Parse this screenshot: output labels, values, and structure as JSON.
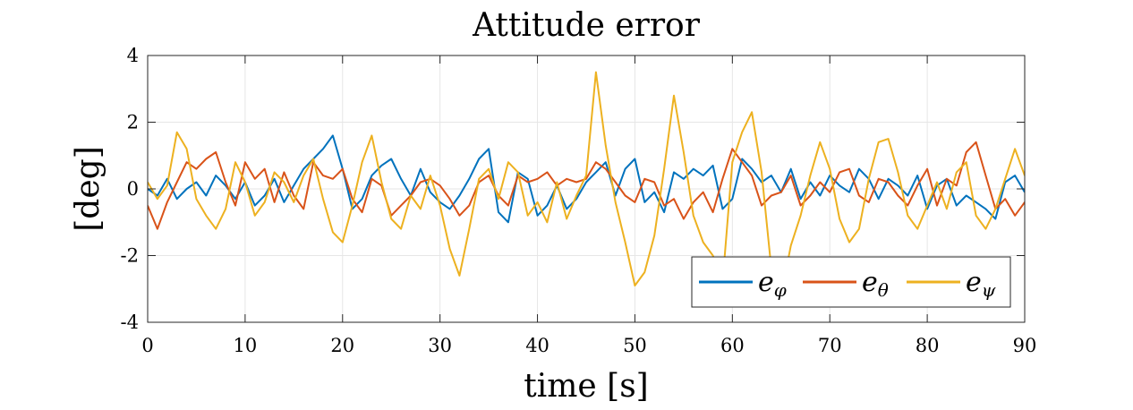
{
  "chart_data": {
    "type": "line",
    "title": "Attitude error",
    "xlabel": "time [s]",
    "ylabel": "[deg]",
    "xlim": [
      0,
      90
    ],
    "ylim": [
      -4,
      4
    ],
    "xticks": [
      0,
      10,
      20,
      30,
      40,
      50,
      60,
      70,
      80,
      90
    ],
    "yticks": [
      -4,
      -2,
      0,
      2,
      4
    ],
    "grid": true,
    "legend_position": "bottom-right",
    "series": [
      {
        "name": "e_φ",
        "legend_base": "e",
        "legend_sub": "φ",
        "color": "#0072BD",
        "x": [
          0,
          1,
          2,
          3,
          4,
          5,
          6,
          7,
          8,
          9,
          10,
          11,
          12,
          13,
          14,
          15,
          16,
          17,
          18,
          19,
          20,
          21,
          22,
          23,
          24,
          25,
          26,
          27,
          28,
          29,
          30,
          31,
          32,
          33,
          34,
          35,
          36,
          37,
          38,
          39,
          40,
          41,
          42,
          43,
          44,
          45,
          46,
          47,
          48,
          49,
          50,
          51,
          52,
          53,
          54,
          55,
          56,
          57,
          58,
          59,
          60,
          61,
          62,
          63,
          64,
          65,
          66,
          67,
          68,
          69,
          70,
          71,
          72,
          73,
          74,
          75,
          76,
          77,
          78,
          79,
          80,
          81,
          82,
          83,
          84,
          85,
          86,
          87,
          88,
          89,
          90
        ],
        "y": [
          0.0,
          -0.2,
          0.3,
          -0.3,
          0.0,
          0.2,
          -0.2,
          0.4,
          0.1,
          -0.3,
          0.2,
          -0.5,
          -0.2,
          0.3,
          -0.4,
          0.1,
          0.6,
          0.9,
          1.2,
          1.6,
          0.6,
          -0.6,
          -0.3,
          0.4,
          0.7,
          0.9,
          0.3,
          -0.2,
          0.6,
          -0.1,
          -0.4,
          -0.6,
          -0.2,
          0.3,
          0.9,
          1.2,
          -0.7,
          -1.0,
          0.5,
          0.3,
          -0.8,
          -0.5,
          0.1,
          -0.6,
          -0.3,
          0.2,
          0.5,
          0.8,
          -0.2,
          0.6,
          0.9,
          -0.4,
          -0.1,
          -0.7,
          0.5,
          0.3,
          0.6,
          0.4,
          0.7,
          -0.6,
          -0.3,
          0.9,
          0.6,
          0.2,
          0.4,
          -0.1,
          0.6,
          -0.3,
          0.2,
          -0.2,
          0.4,
          0.1,
          -0.1,
          0.6,
          0.3,
          -0.3,
          0.3,
          0.1,
          -0.2,
          0.4,
          -0.6,
          0.1,
          0.3,
          -0.5,
          -0.2,
          -0.4,
          -0.6,
          -0.9,
          0.2,
          0.4,
          -0.1
        ]
      },
      {
        "name": "e_θ",
        "legend_base": "e",
        "legend_sub": "θ",
        "color": "#D95319",
        "x": [
          0,
          1,
          2,
          3,
          4,
          5,
          6,
          7,
          8,
          9,
          10,
          11,
          12,
          13,
          14,
          15,
          16,
          17,
          18,
          19,
          20,
          21,
          22,
          23,
          24,
          25,
          26,
          27,
          28,
          29,
          30,
          31,
          32,
          33,
          34,
          35,
          36,
          37,
          38,
          39,
          40,
          41,
          42,
          43,
          44,
          45,
          46,
          47,
          48,
          49,
          50,
          51,
          52,
          53,
          54,
          55,
          56,
          57,
          58,
          59,
          60,
          61,
          62,
          63,
          64,
          65,
          66,
          67,
          68,
          69,
          70,
          71,
          72,
          73,
          74,
          75,
          76,
          77,
          78,
          79,
          80,
          81,
          82,
          83,
          84,
          85,
          86,
          87,
          88,
          89,
          90
        ],
        "y": [
          -0.5,
          -1.2,
          -0.4,
          0.2,
          0.8,
          0.6,
          0.9,
          1.1,
          0.2,
          -0.5,
          0.8,
          0.3,
          0.6,
          -0.4,
          0.5,
          -0.2,
          -0.6,
          0.8,
          0.4,
          0.3,
          0.6,
          -0.3,
          -0.7,
          0.3,
          0.1,
          -0.8,
          -0.5,
          -0.2,
          0.2,
          0.3,
          0.1,
          -0.3,
          -0.8,
          -0.5,
          0.2,
          0.4,
          -0.2,
          -0.5,
          0.4,
          0.2,
          0.3,
          0.5,
          0.1,
          0.3,
          0.2,
          0.3,
          0.8,
          0.6,
          0.2,
          -0.2,
          -0.4,
          0.3,
          0.2,
          -0.5,
          -0.3,
          -0.9,
          -0.4,
          -0.1,
          -0.7,
          0.3,
          1.2,
          0.8,
          0.4,
          -0.5,
          -0.2,
          -0.1,
          0.4,
          -0.5,
          -0.2,
          0.2,
          -0.1,
          0.5,
          0.6,
          -0.2,
          -0.4,
          0.3,
          0.2,
          -0.2,
          -0.5,
          0.1,
          0.6,
          -0.5,
          0.3,
          0.1,
          1.1,
          1.4,
          0.4,
          -0.6,
          -0.3,
          -0.8,
          -0.4
        ]
      },
      {
        "name": "e_ψ",
        "legend_base": "e",
        "legend_sub": "ψ",
        "color": "#EDB120",
        "x": [
          0,
          1,
          2,
          3,
          4,
          5,
          6,
          7,
          8,
          9,
          10,
          11,
          12,
          13,
          14,
          15,
          16,
          17,
          18,
          19,
          20,
          21,
          22,
          23,
          24,
          25,
          26,
          27,
          28,
          29,
          30,
          31,
          32,
          33,
          34,
          35,
          36,
          37,
          38,
          39,
          40,
          41,
          42,
          43,
          44,
          45,
          46,
          47,
          48,
          49,
          50,
          51,
          52,
          53,
          54,
          55,
          56,
          57,
          58,
          59,
          60,
          61,
          62,
          63,
          64,
          65,
          66,
          67,
          68,
          69,
          70,
          71,
          72,
          73,
          74,
          75,
          76,
          77,
          78,
          79,
          80,
          81,
          82,
          83,
          84,
          85,
          86,
          87,
          88,
          89,
          90
        ],
        "y": [
          0.2,
          -0.3,
          0.1,
          1.7,
          1.2,
          -0.3,
          -0.8,
          -1.2,
          -0.6,
          0.8,
          0.2,
          -0.8,
          -0.4,
          0.5,
          0.2,
          -0.4,
          0.4,
          0.9,
          -0.3,
          -1.3,
          -1.6,
          -0.5,
          0.8,
          1.6,
          0.2,
          -0.9,
          -1.2,
          -0.2,
          -0.6,
          0.4,
          -0.5,
          -1.8,
          -2.6,
          -1.2,
          0.3,
          0.6,
          -0.3,
          0.8,
          0.5,
          -0.8,
          -0.4,
          -1.0,
          0.2,
          -0.9,
          -0.2,
          0.4,
          3.5,
          1.3,
          -0.4,
          -1.6,
          -2.9,
          -2.5,
          -1.4,
          0.6,
          2.8,
          1.1,
          -0.8,
          -1.6,
          -2.0,
          -2.8,
          0.8,
          1.7,
          2.3,
          0.5,
          -2.4,
          -3.2,
          -1.7,
          -0.8,
          0.4,
          1.4,
          0.6,
          -0.9,
          -1.6,
          -1.2,
          0.3,
          1.4,
          1.5,
          0.5,
          -0.8,
          -1.2,
          -0.5,
          0.2,
          -0.6,
          0.5,
          0.8,
          -0.8,
          -1.2,
          -0.6,
          0.3,
          1.2,
          0.4
        ]
      }
    ]
  }
}
